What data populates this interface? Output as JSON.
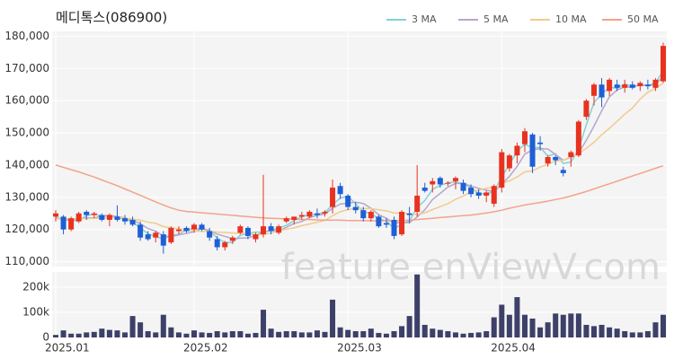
{
  "chart_data": {
    "type": "candlestick",
    "title": "메디톡스(086900)",
    "watermark": "feature.enViewV.com",
    "categories": [
      "2025.01",
      null,
      null,
      null,
      null,
      null,
      null,
      null,
      null,
      null,
      null,
      null,
      null,
      null,
      null,
      null,
      null,
      null,
      "2025.02",
      null,
      null,
      null,
      null,
      null,
      null,
      null,
      null,
      null,
      null,
      null,
      null,
      null,
      null,
      null,
      null,
      null,
      null,
      null,
      "2025.03",
      null,
      null,
      null,
      null,
      null,
      null,
      null,
      null,
      null,
      null,
      null,
      null,
      null,
      null,
      null,
      null,
      null,
      null,
      null,
      "2025.04",
      null,
      null,
      null,
      null,
      null,
      null,
      null,
      null,
      null,
      null,
      null,
      null,
      null,
      null,
      null,
      null,
      null,
      null,
      null,
      null,
      null
    ],
    "open": [
      124000,
      124000,
      120000,
      122500,
      125500,
      124500,
      124500,
      123000,
      124000,
      123500,
      123000,
      121500,
      118500,
      117500,
      118500,
      116000,
      119500,
      120500,
      120000,
      121500,
      119500,
      117000,
      114500,
      116500,
      119000,
      120500,
      117000,
      118500,
      121000,
      119000,
      122500,
      123000,
      124000,
      124000,
      125000,
      125000,
      127000,
      133500,
      130500,
      127000,
      126000,
      123500,
      124000,
      122000,
      123000,
      118500,
      125000,
      125500,
      133000,
      134000,
      136000,
      134500,
      135000,
      134500,
      133000,
      131500,
      130500,
      128000,
      133000,
      139000,
      143000,
      146500,
      149500,
      147000,
      140500,
      142500,
      138500,
      142500,
      143000,
      155000,
      161500,
      165000,
      163000,
      165000,
      164000,
      165000,
      164500,
      165000,
      164000,
      166000
    ],
    "high": [
      126000,
      124500,
      124000,
      125500,
      126000,
      125500,
      125000,
      125000,
      127500,
      124500,
      124000,
      122500,
      119500,
      119500,
      119500,
      121000,
      121000,
      121000,
      122000,
      122000,
      120500,
      118000,
      116500,
      118000,
      121500,
      121000,
      119000,
      137000,
      122000,
      121500,
      124000,
      124000,
      125500,
      126000,
      126500,
      126000,
      135500,
      134500,
      131000,
      128500,
      127000,
      126000,
      124500,
      123500,
      124000,
      126000,
      127000,
      140000,
      134500,
      136000,
      136500,
      135000,
      136500,
      135500,
      134000,
      132500,
      132000,
      134000,
      145000,
      143500,
      147000,
      151500,
      150000,
      149000,
      143000,
      143000,
      139500,
      144500,
      154000,
      160500,
      165500,
      167000,
      167000,
      166500,
      166500,
      166000,
      166000,
      166500,
      167000,
      178000
    ],
    "low": [
      122500,
      118500,
      119500,
      122000,
      123000,
      123500,
      122500,
      121000,
      122500,
      121500,
      121000,
      116500,
      116500,
      116000,
      112500,
      115500,
      118500,
      119000,
      119000,
      119500,
      116500,
      113500,
      113500,
      115500,
      118500,
      117000,
      116000,
      117500,
      118500,
      118500,
      122000,
      121500,
      123000,
      123500,
      123500,
      124000,
      125000,
      129500,
      126000,
      125000,
      122500,
      122500,
      120500,
      120500,
      117000,
      118000,
      122000,
      124000,
      131500,
      131500,
      133000,
      133500,
      132500,
      131000,
      130000,
      129500,
      128500,
      127000,
      131500,
      138000,
      140500,
      144000,
      137500,
      144500,
      139500,
      140000,
      136500,
      139500,
      142500,
      154000,
      158500,
      158000,
      161500,
      163000,
      162500,
      163500,
      163000,
      163500,
      163000,
      165500
    ],
    "close": [
      125000,
      120000,
      123500,
      125000,
      124500,
      125000,
      123000,
      124500,
      123000,
      122500,
      121500,
      117500,
      117000,
      119000,
      115000,
      120500,
      120000,
      119500,
      121500,
      120000,
      117500,
      114500,
      116000,
      117500,
      121000,
      118000,
      118500,
      121000,
      119500,
      121000,
      123500,
      124000,
      124500,
      125500,
      124500,
      125500,
      133000,
      131000,
      127000,
      126000,
      123500,
      125500,
      121000,
      121500,
      118000,
      125500,
      124500,
      130500,
      132000,
      135000,
      134000,
      134500,
      136000,
      132000,
      131000,
      130500,
      131500,
      133500,
      144000,
      143000,
      146000,
      150500,
      139500,
      146500,
      142500,
      141500,
      137500,
      144000,
      153500,
      160000,
      165000,
      161000,
      166500,
      164000,
      165000,
      164000,
      165500,
      164500,
      166500,
      177000
    ],
    "up_color": "#e8321f",
    "down_color": "#1f5fd6",
    "ylim": [
      108500,
      181500
    ],
    "yticks": [
      {
        "value": 110000,
        "label": "110,000"
      },
      {
        "value": 120000,
        "label": "120,000"
      },
      {
        "value": 130000,
        "label": "130,000"
      },
      {
        "value": 140000,
        "label": "140,000"
      },
      {
        "value": 150000,
        "label": "150,000"
      },
      {
        "value": 160000,
        "label": "160,000"
      },
      {
        "value": 170000,
        "label": "170,000"
      },
      {
        "value": 180000,
        "label": "180,000"
      }
    ],
    "grid": true,
    "moving_averages": [
      {
        "name": "3 MA",
        "color": "#7fd3d6",
        "values": [
          124000,
          123000,
          122800,
          122800,
          124300,
          124800,
          124200,
          124200,
          123500,
          123300,
          122300,
          120500,
          118700,
          117800,
          117000,
          118200,
          118500,
          120000,
          120300,
          120300,
          119700,
          117300,
          116000,
          116000,
          118200,
          118800,
          119200,
          119200,
          119700,
          120500,
          121300,
          122800,
          124000,
          124700,
          124800,
          125200,
          127700,
          129800,
          130300,
          128000,
          125500,
          125000,
          123300,
          122700,
          120200,
          121700,
          122700,
          126800,
          129000,
          132500,
          133700,
          134500,
          134800,
          134200,
          133000,
          131200,
          131000,
          131800,
          136300,
          140200,
          144300,
          146500,
          145300,
          145500,
          142800,
          143500,
          140500,
          141000,
          145000,
          152500,
          159500,
          162000,
          164200,
          163800,
          165200,
          164300,
          164800,
          164700,
          165500,
          169300
        ]
      },
      {
        "name": "5 MA",
        "color": "#b7a6cc",
        "values": [
          123500,
          123200,
          123000,
          123200,
          123600,
          123600,
          124200,
          124400,
          124000,
          123600,
          122900,
          121800,
          120300,
          119500,
          118000,
          117800,
          118300,
          118800,
          119300,
          120300,
          119700,
          118600,
          117900,
          117100,
          117300,
          117400,
          118200,
          119200,
          119700,
          119600,
          120700,
          121900,
          122500,
          123700,
          124400,
          124800,
          126600,
          127900,
          128200,
          128500,
          128100,
          126600,
          124600,
          123500,
          121900,
          122300,
          122100,
          123900,
          126100,
          129300,
          131200,
          133200,
          134300,
          134300,
          133500,
          132800,
          132200,
          131700,
          134100,
          136500,
          139600,
          143400,
          144700,
          145100,
          145000,
          143300,
          141500,
          142400,
          143800,
          147700,
          152100,
          156800,
          161200,
          163300,
          164300,
          164100,
          165000,
          164600,
          165100,
          167500
        ]
      },
      {
        "name": "10 MA",
        "color": "#f1cb8f",
        "values": [
          123500,
          123400,
          123300,
          123300,
          123400,
          123500,
          123500,
          123700,
          123700,
          123600,
          123200,
          122900,
          122300,
          121900,
          120900,
          120500,
          120200,
          119700,
          119600,
          119400,
          119500,
          119200,
          119100,
          118900,
          118900,
          118600,
          118400,
          118500,
          118900,
          119700,
          120100,
          120500,
          121200,
          121700,
          122300,
          122800,
          124300,
          125500,
          126200,
          126600,
          126500,
          126500,
          126100,
          125800,
          125100,
          125100,
          124800,
          124700,
          125200,
          126200,
          127100,
          128000,
          129400,
          130400,
          131700,
          132200,
          132800,
          133100,
          134300,
          135100,
          136300,
          137900,
          138200,
          139400,
          140200,
          141300,
          141500,
          142600,
          143600,
          145200,
          147100,
          149400,
          151400,
          153600,
          155800,
          157700,
          160500,
          162600,
          163800,
          165500
        ]
      },
      {
        "name": "50 MA",
        "color": "#f4a28c",
        "values": [
          140000,
          139300,
          138600,
          137900,
          137100,
          136300,
          135400,
          134500,
          133600,
          132600,
          131600,
          130600,
          129600,
          128600,
          127600,
          126700,
          126000,
          125600,
          125400,
          125200,
          125000,
          124800,
          124600,
          124400,
          124200,
          124000,
          123800,
          123600,
          123500,
          123400,
          123300,
          123200,
          123100,
          123100,
          123000,
          122900,
          122900,
          122900,
          122800,
          122800,
          122800,
          122700,
          122700,
          122700,
          122700,
          122800,
          122900,
          123100,
          123300,
          123500,
          123700,
          123900,
          124100,
          124300,
          124500,
          124800,
          125100,
          125500,
          126000,
          126600,
          127100,
          127600,
          128000,
          128400,
          128800,
          129300,
          129800,
          130400,
          131100,
          131800,
          132600,
          133400,
          134200,
          135000,
          135800,
          136600,
          137400,
          138200,
          139000,
          139800
        ]
      }
    ],
    "volume": {
      "color": "#3d4068",
      "ylim": [
        0,
        260000
      ],
      "yticks": [
        0,
        {
          "value": 100000,
          "label": "100k"
        },
        {
          "value": 200000,
          "label": "200k"
        }
      ],
      "values": [
        10000,
        28000,
        15000,
        15000,
        20000,
        22000,
        35000,
        30000,
        28000,
        20000,
        85000,
        60000,
        25000,
        20000,
        90000,
        40000,
        20000,
        15000,
        28000,
        20000,
        18000,
        25000,
        20000,
        25000,
        25000,
        15000,
        18000,
        110000,
        35000,
        22000,
        25000,
        25000,
        20000,
        20000,
        28000,
        22000,
        150000,
        40000,
        30000,
        25000,
        25000,
        35000,
        18000,
        15000,
        25000,
        45000,
        85000,
        250000,
        50000,
        35000,
        30000,
        25000,
        20000,
        15000,
        18000,
        20000,
        25000,
        80000,
        130000,
        90000,
        160000,
        90000,
        75000,
        40000,
        60000,
        95000,
        90000,
        95000,
        95000,
        50000,
        45000,
        50000,
        40000,
        35000,
        25000,
        20000,
        20000,
        25000,
        60000,
        90000
      ]
    }
  }
}
